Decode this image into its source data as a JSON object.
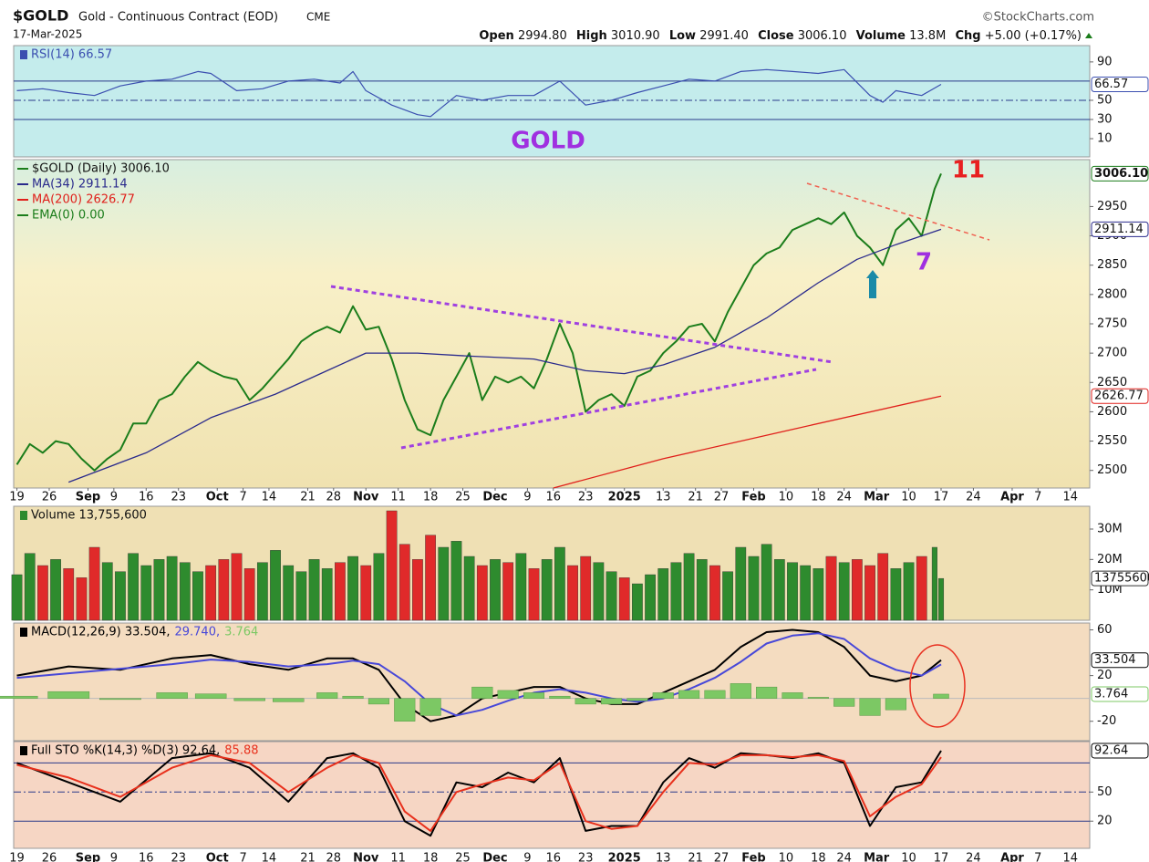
{
  "header": {
    "symbol": "$GOLD",
    "name": "Gold - Continuous Contract (EOD)",
    "exchange": "CME",
    "date": "17-Mar-2025",
    "source": "©StockCharts.com",
    "stats": [
      {
        "label": "Open",
        "value": "2994.80"
      },
      {
        "label": "High",
        "value": "3010.90"
      },
      {
        "label": "Low",
        "value": "2991.40"
      },
      {
        "label": "Close",
        "value": "3006.10"
      },
      {
        "label": "Volume",
        "value": "13.8M"
      },
      {
        "label": "Chg",
        "value": "+5.00 (+0.17%)"
      }
    ]
  },
  "chart_data": [
    {
      "type": "line",
      "ylim": [
        -9,
        107
      ],
      "yticks": [
        10,
        30,
        50,
        90
      ],
      "ref_lines": [
        30,
        70
      ],
      "dash_lines": [
        50
      ],
      "series": [
        {
          "name": "RSI(14) 66.57",
          "color": "#3b4fb0",
          "x": [
            0,
            4,
            8,
            12,
            16,
            20,
            24,
            28,
            30,
            34,
            38,
            42,
            46,
            50,
            52,
            54,
            58,
            62,
            64,
            68,
            72,
            76,
            80,
            84,
            88,
            92,
            96,
            100,
            104,
            108,
            112,
            116,
            120,
            124,
            128,
            132,
            134,
            136,
            140,
            143
          ],
          "values": [
            60,
            62,
            58,
            55,
            65,
            70,
            72,
            80,
            78,
            60,
            62,
            70,
            72,
            68,
            80,
            60,
            45,
            35,
            33,
            55,
            50,
            55,
            55,
            70,
            45,
            50,
            58,
            65,
            72,
            70,
            80,
            82,
            80,
            78,
            82,
            55,
            48,
            60,
            55,
            66.57
          ],
          "last_label": "66.57"
        }
      ]
    },
    {
      "type": "line",
      "xlim": [
        -0.5,
        166
      ],
      "xticks": [
        {
          "value": 0,
          "label": "19"
        },
        {
          "value": 5,
          "label": "26"
        },
        {
          "value": 11,
          "label": "Sep"
        },
        {
          "value": 15,
          "label": "9"
        },
        {
          "value": 20,
          "label": "16"
        },
        {
          "value": 25,
          "label": "23"
        },
        {
          "value": 31,
          "label": "Oct"
        },
        {
          "value": 35,
          "label": "7"
        },
        {
          "value": 39,
          "label": "14"
        },
        {
          "value": 45,
          "label": "21"
        },
        {
          "value": 49,
          "label": "28"
        },
        {
          "value": 54,
          "label": "Nov"
        },
        {
          "value": 59,
          "label": "11"
        },
        {
          "value": 64,
          "label": "18"
        },
        {
          "value": 69,
          "label": "25"
        },
        {
          "value": 74,
          "label": "Dec"
        },
        {
          "value": 79,
          "label": "9"
        },
        {
          "value": 83,
          "label": "16"
        },
        {
          "value": 88,
          "label": "23"
        },
        {
          "value": 94,
          "label": "2025"
        },
        {
          "value": 100,
          "label": "13"
        },
        {
          "value": 105,
          "label": "21"
        },
        {
          "value": 109,
          "label": "27"
        },
        {
          "value": 114,
          "label": "Feb"
        },
        {
          "value": 119,
          "label": "10"
        },
        {
          "value": 124,
          "label": "18"
        },
        {
          "value": 128,
          "label": "24"
        },
        {
          "value": 133,
          "label": "Mar"
        },
        {
          "value": 138,
          "label": "10"
        },
        {
          "value": 143,
          "label": "17"
        },
        {
          "value": 148,
          "label": "24"
        },
        {
          "value": 154,
          "label": "Apr"
        },
        {
          "value": 158,
          "label": "7"
        },
        {
          "value": 163,
          "label": "14"
        }
      ],
      "ylim": [
        2470,
        3030
      ],
      "yticks": [
        2500,
        2550,
        2600,
        2650,
        2700,
        2750,
        2800,
        2850,
        2900,
        2950
      ],
      "annotations": [
        "GOLD",
        "11",
        "7"
      ],
      "series": [
        {
          "name": "$GOLD (Daily) 3006.10",
          "color": "#1b7d1b",
          "x": [
            0,
            2,
            4,
            6,
            8,
            10,
            12,
            14,
            16,
            18,
            20,
            22,
            24,
            26,
            28,
            30,
            32,
            34,
            36,
            38,
            40,
            42,
            44,
            46,
            48,
            50,
            52,
            54,
            56,
            58,
            60,
            62,
            64,
            66,
            68,
            70,
            72,
            74,
            76,
            78,
            80,
            82,
            84,
            86,
            88,
            90,
            92,
            94,
            96,
            98,
            100,
            102,
            104,
            106,
            108,
            110,
            112,
            114,
            116,
            118,
            120,
            122,
            124,
            126,
            128,
            130,
            132,
            134,
            136,
            138,
            140,
            142,
            143
          ],
          "values": [
            2510,
            2545,
            2530,
            2550,
            2545,
            2520,
            2500,
            2520,
            2535,
            2580,
            2580,
            2620,
            2630,
            2660,
            2685,
            2670,
            2660,
            2655,
            2620,
            2640,
            2665,
            2690,
            2720,
            2735,
            2745,
            2735,
            2780,
            2740,
            2745,
            2690,
            2620,
            2570,
            2560,
            2620,
            2660,
            2700,
            2620,
            2660,
            2650,
            2660,
            2640,
            2690,
            2750,
            2700,
            2600,
            2620,
            2630,
            2610,
            2660,
            2670,
            2700,
            2720,
            2745,
            2750,
            2720,
            2770,
            2810,
            2850,
            2870,
            2880,
            2910,
            2920,
            2930,
            2920,
            2940,
            2900,
            2880,
            2850,
            2910,
            2930,
            2900,
            2980,
            3006.1
          ],
          "last_label": "3006.10"
        },
        {
          "name": "MA(34) 2911.14",
          "color": "#2a2a8c",
          "x": [
            8,
            20,
            30,
            40,
            48,
            54,
            62,
            70,
            80,
            88,
            94,
            100,
            108,
            116,
            124,
            130,
            136,
            143
          ],
          "values": [
            2480,
            2530,
            2590,
            2630,
            2670,
            2700,
            2700,
            2695,
            2690,
            2670,
            2665,
            2680,
            2710,
            2760,
            2820,
            2860,
            2885,
            2911.14
          ],
          "last_label": "2911.14"
        },
        {
          "name": "MA(200) 2626.77",
          "color": "#e0201b",
          "x": [
            83,
            100,
            120,
            143
          ],
          "values": [
            2470,
            2520,
            2570,
            2626.77
          ],
          "last_label": "2626.77"
        },
        {
          "name": "EMA(0) 0.00",
          "color": "#1b7d1b"
        }
      ]
    },
    {
      "type": "bar",
      "ylim": [
        0,
        37.5
      ],
      "yticks": [
        {
          "value": 10,
          "label": "10M"
        },
        {
          "value": 20,
          "label": "20M"
        },
        {
          "value": 30,
          "label": "30M"
        }
      ],
      "up_color": "#2e8b2e",
      "down_color": "#e02a2a",
      "series": [
        {
          "name": "Volume 13,755,600",
          "x": [
            0,
            2,
            4,
            6,
            8,
            10,
            12,
            14,
            16,
            18,
            20,
            22,
            24,
            26,
            28,
            30,
            32,
            34,
            36,
            38,
            40,
            42,
            44,
            46,
            48,
            50,
            52,
            54,
            56,
            58,
            60,
            62,
            64,
            66,
            68,
            70,
            72,
            74,
            76,
            78,
            80,
            82,
            84,
            86,
            88,
            90,
            92,
            94,
            96,
            98,
            100,
            102,
            104,
            106,
            108,
            110,
            112,
            114,
            116,
            118,
            120,
            122,
            124,
            126,
            128,
            130,
            132,
            134,
            136,
            138,
            140,
            142,
            143
          ],
          "values": [
            15,
            22,
            18,
            20,
            17,
            14,
            24,
            19,
            16,
            22,
            18,
            20,
            21,
            19,
            16,
            18,
            20,
            22,
            17,
            19,
            23,
            18,
            16,
            20,
            17,
            19,
            21,
            18,
            22,
            36,
            25,
            20,
            28,
            24,
            26,
            21,
            18,
            20,
            19,
            22,
            17,
            20,
            24,
            18,
            21,
            19,
            16,
            14,
            12,
            15,
            17,
            19,
            22,
            20,
            18,
            16,
            24,
            21,
            25,
            20,
            19,
            18,
            17,
            21,
            19,
            20,
            18,
            22,
            17,
            19,
            21,
            24,
            13.7556
          ],
          "last_label": "13755600"
        }
      ]
    },
    {
      "type": "line",
      "ylim": [
        -37,
        66
      ],
      "yticks": [
        -20,
        20,
        60
      ],
      "series": [
        {
          "name": "MACD(12,26,9) 33.504,",
          "color": "#000000",
          "x": [
            0,
            8,
            16,
            24,
            30,
            36,
            42,
            48,
            52,
            56,
            60,
            64,
            68,
            72,
            76,
            80,
            84,
            88,
            92,
            96,
            100,
            104,
            108,
            112,
            116,
            120,
            124,
            128,
            132,
            136,
            140,
            143
          ],
          "values": [
            20,
            28,
            25,
            35,
            38,
            30,
            25,
            35,
            35,
            25,
            -5,
            -20,
            -15,
            0,
            5,
            10,
            10,
            0,
            -5,
            -5,
            5,
            15,
            25,
            45,
            58,
            60,
            58,
            45,
            20,
            15,
            20,
            33.504
          ],
          "last_label": "33.504"
        },
        {
          "name": "29.740,",
          "color": "#4848d8",
          "x": [
            0,
            8,
            16,
            24,
            30,
            36,
            42,
            48,
            52,
            56,
            60,
            64,
            68,
            72,
            76,
            80,
            84,
            88,
            92,
            96,
            100,
            104,
            108,
            112,
            116,
            120,
            124,
            128,
            132,
            136,
            140,
            143
          ],
          "values": [
            18,
            22,
            26,
            30,
            34,
            32,
            28,
            30,
            33,
            30,
            15,
            -5,
            -15,
            -10,
            -2,
            5,
            8,
            5,
            0,
            -3,
            0,
            8,
            18,
            32,
            48,
            55,
            57,
            52,
            35,
            25,
            20,
            29.74
          ]
        },
        {
          "name": "3.764",
          "color": "#7cc864",
          "kind": "hist",
          "x": [
            0,
            8,
            16,
            24,
            30,
            36,
            42,
            48,
            52,
            56,
            60,
            64,
            68,
            72,
            76,
            80,
            84,
            88,
            92,
            96,
            100,
            104,
            108,
            112,
            116,
            120,
            124,
            128,
            132,
            136,
            140,
            143
          ],
          "values": [
            2,
            6,
            -1,
            5,
            4,
            -2,
            -3,
            5,
            2,
            -5,
            -20,
            -15,
            0,
            10,
            7,
            5,
            2,
            -5,
            -5,
            -2,
            5,
            7,
            7,
            13,
            10,
            5,
            1,
            -7,
            -15,
            -10,
            0,
            3.764
          ],
          "last_label": "3.764"
        }
      ]
    },
    {
      "type": "line",
      "ylim": [
        -8,
        102
      ],
      "yticks": [
        20,
        50
      ],
      "ref_lines": [
        20,
        80
      ],
      "dash_lines": [
        50
      ],
      "series": [
        {
          "name": "Full STO %K(14,3) %D(3) 92.64,",
          "color": "#000000",
          "x": [
            0,
            8,
            16,
            24,
            30,
            36,
            42,
            48,
            52,
            56,
            60,
            64,
            68,
            72,
            76,
            80,
            84,
            88,
            92,
            96,
            100,
            104,
            108,
            112,
            116,
            120,
            124,
            128,
            132,
            136,
            140,
            143
          ],
          "values": [
            80,
            60,
            40,
            85,
            90,
            75,
            40,
            85,
            90,
            75,
            20,
            5,
            60,
            55,
            70,
            60,
            85,
            10,
            15,
            15,
            60,
            85,
            75,
            90,
            88,
            85,
            90,
            80,
            15,
            55,
            60,
            92.64
          ],
          "last_label": "92.64"
        },
        {
          "name": "85.88",
          "color": "#e8301c",
          "x": [
            0,
            8,
            16,
            24,
            30,
            36,
            42,
            48,
            52,
            56,
            60,
            64,
            68,
            72,
            76,
            80,
            84,
            88,
            92,
            96,
            100,
            104,
            108,
            112,
            116,
            120,
            124,
            128,
            132,
            136,
            140,
            143
          ],
          "values": [
            78,
            65,
            45,
            75,
            88,
            80,
            50,
            75,
            88,
            80,
            30,
            10,
            50,
            58,
            65,
            62,
            80,
            20,
            12,
            15,
            50,
            80,
            78,
            88,
            88,
            86,
            88,
            82,
            25,
            45,
            58,
            85.88
          ]
        }
      ]
    }
  ]
}
